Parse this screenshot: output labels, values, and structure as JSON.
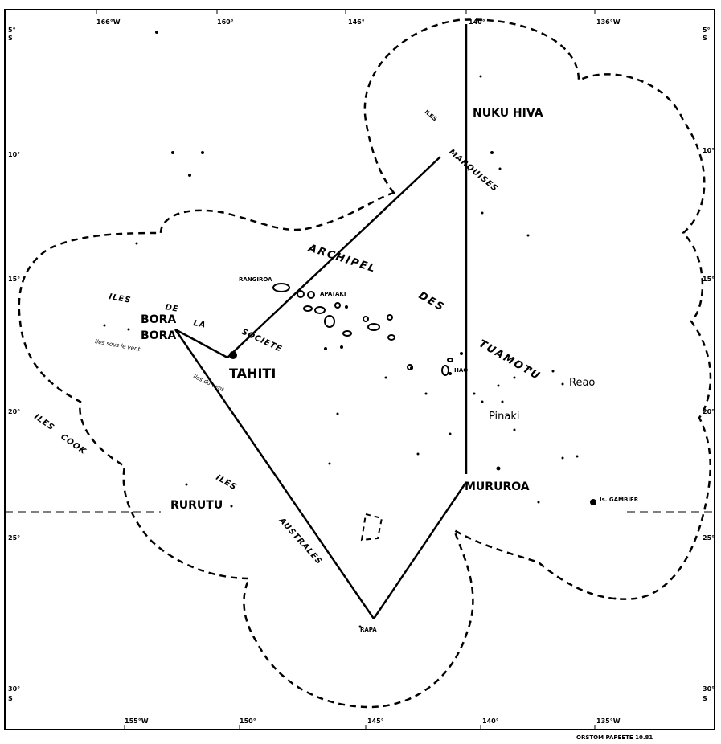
{
  "map": {
    "ticks_top": [
      "166°W",
      "160°",
      "146°",
      "140°",
      "136°W"
    ],
    "ticks_bottom": [
      "155°W",
      "150°",
      "145°",
      "140°",
      "135°W"
    ],
    "ticks_left": [
      "5°",
      "S",
      "10°",
      "15°",
      "20°",
      "25°",
      "30°",
      "S"
    ],
    "ticks_right": [
      "5°",
      "S",
      "10°",
      "15°",
      "20°",
      "25°",
      "30°",
      "S"
    ],
    "credit": "ORSTOM   PAPEETE   10.81",
    "labels": {
      "nuku_hiva": "NUKU HIVA",
      "iles_marquises_1": "ILES",
      "iles_marquises_2": "MARQUISES",
      "archipel": "ARCHIPEL",
      "des": "DES",
      "tuamotu": "TUAMOTU",
      "rangiroa": "RANGIROA",
      "apataki": "APATAKI",
      "hao": "HAO",
      "reao": "Reao",
      "pinaki": "Pinaki",
      "mururoa": "MURUROA",
      "gambier": "Is. GAMBIER",
      "iles_de_la_societe_1": "ILES",
      "iles_de_la_societe_2": "DE",
      "iles_de_la_societe_3": "LA",
      "iles_de_la_societe_4": "SOCIETE",
      "bora_1": "BORA",
      "bora_2": "BORA",
      "tahiti": "TAHITI",
      "iles_sous_le_vent": "Iles   sous   le   vent",
      "iles_du_vent": "Iles   du   vent",
      "iles_cook_1": "ILES",
      "iles_cook_2": "COOK",
      "rurutu": "RURUTU",
      "iles_australes_1": "ILES",
      "iles_australes_2": "AUSTRALES",
      "rapa": "RAPA"
    }
  }
}
